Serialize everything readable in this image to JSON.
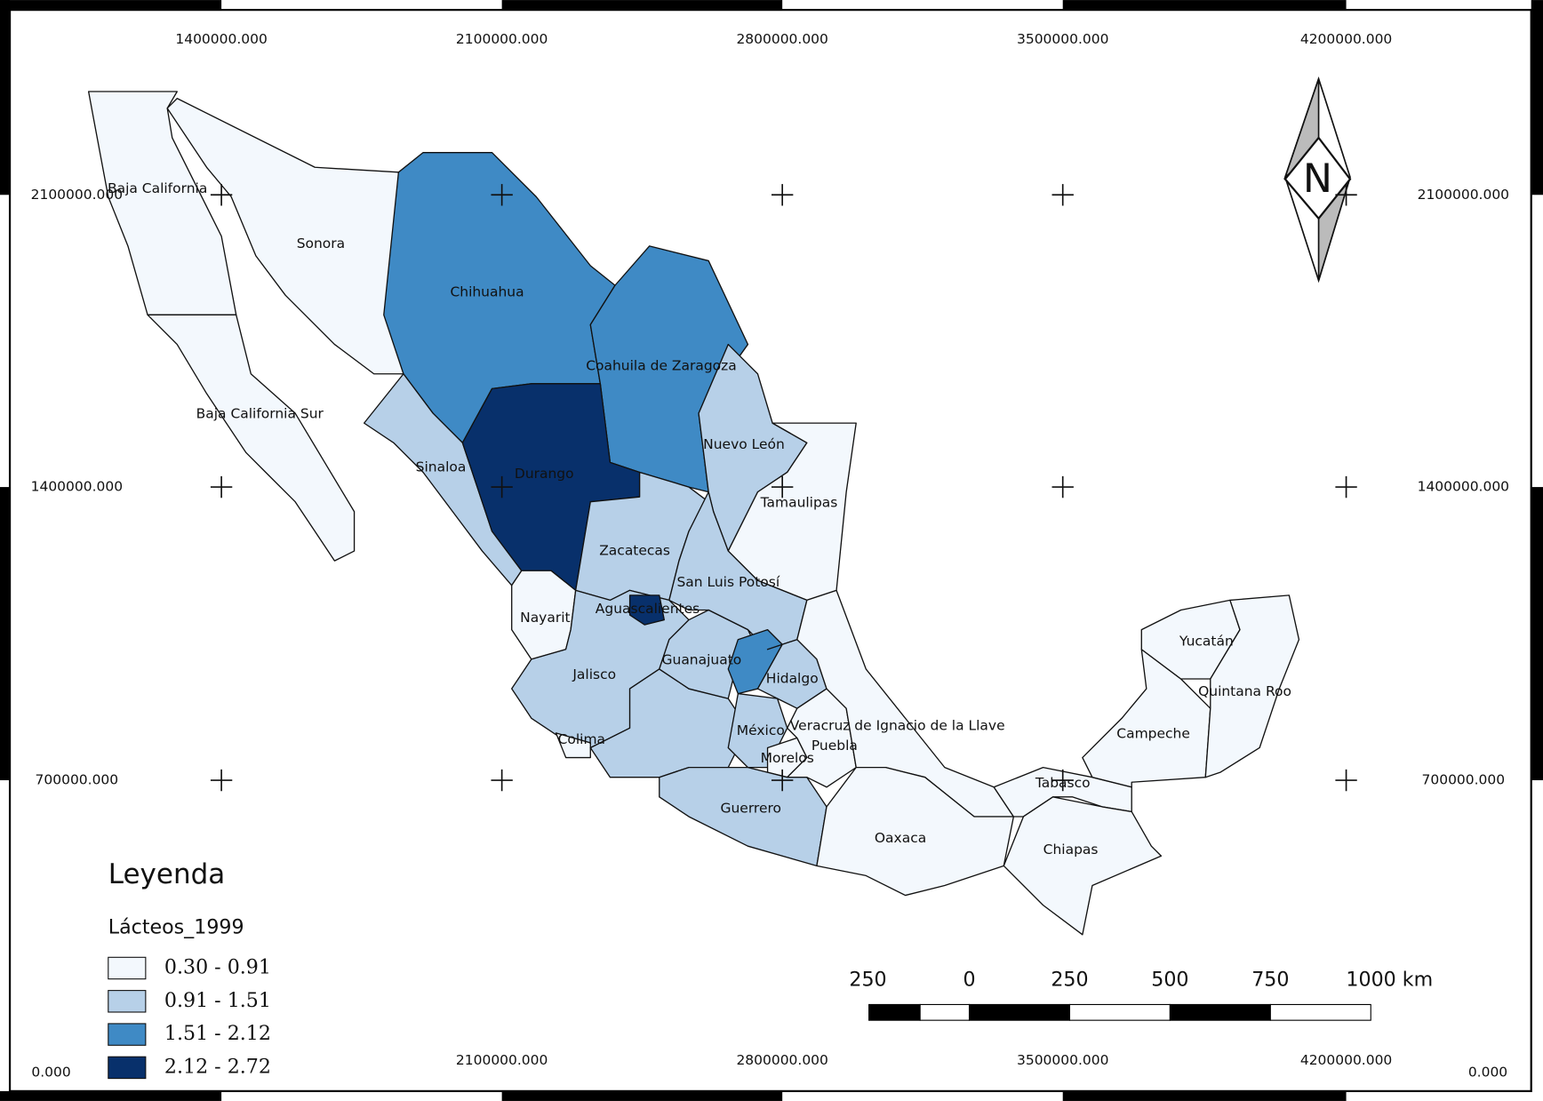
{
  "grid_labels": {
    "top": [
      "1400000.000",
      "2100000.000",
      "2800000.000",
      "3500000.000",
      "4200000.000"
    ],
    "bottom": [
      "2100000.000",
      "2800000.000",
      "3500000.000",
      "4200000.000"
    ],
    "left": [
      "2100000.000",
      "1400000.000",
      "700000.000"
    ],
    "right": [
      "2100000.000",
      "1400000.000",
      "700000.000"
    ],
    "bottom_left": "0.000",
    "bottom_right": "0.000"
  },
  "states": [
    "Baja California",
    "Baja California Sur",
    "Sonora",
    "Chihuahua",
    "Coahuila de Zaragoza",
    "Nuevo León",
    "Tamaulipas",
    "Sinaloa",
    "Durango",
    "Zacatecas",
    "San Luis Potosí",
    "Nayarit",
    "Aguascalientes",
    "Jalisco",
    "Guanajuato",
    "Hidalgo",
    "Colima",
    "México",
    "Veracruz de Ignacio de la Llave",
    "Puebla",
    "Morelos",
    "Guerrero",
    "Oaxaca",
    "Tabasco",
    "Chiapas",
    "Campeche",
    "Yucatán",
    "Quintana Roo"
  ],
  "legend": {
    "title": "Leyenda",
    "layer": "Lácteos_1999",
    "classes": [
      {
        "label": "0.30 - 0.91",
        "color": "#f3f8fd"
      },
      {
        "label": "0.91 - 1.51",
        "color": "#b7d0e8"
      },
      {
        "label": "1.51 - 2.12",
        "color": "#3f8ac5"
      },
      {
        "label": "2.12 - 2.72",
        "color": "#08306b"
      }
    ]
  },
  "scale_bar": {
    "labels": [
      "250",
      "0",
      "250",
      "500",
      "750",
      "1000 km"
    ]
  },
  "north_arrow": "N"
}
